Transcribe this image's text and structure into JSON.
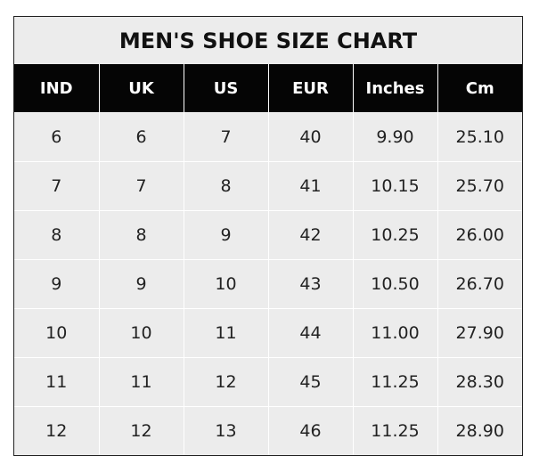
{
  "title": "MEN'S SHOE SIZE CHART",
  "columns": [
    "IND",
    "UK",
    "US",
    "EUR",
    "Inches",
    "Cm"
  ],
  "rows": [
    [
      "6",
      "6",
      "7",
      "40",
      "9.90",
      "25.10"
    ],
    [
      "7",
      "7",
      "8",
      "41",
      "10.15",
      "25.70"
    ],
    [
      "8",
      "8",
      "9",
      "42",
      "10.25",
      "26.00"
    ],
    [
      "9",
      "9",
      "10",
      "43",
      "10.50",
      "26.70"
    ],
    [
      "10",
      "10",
      "11",
      "44",
      "11.00",
      "27.90"
    ],
    [
      "11",
      "11",
      "12",
      "45",
      "11.25",
      "28.30"
    ],
    [
      "12",
      "12",
      "13",
      "46",
      "11.25",
      "28.90"
    ]
  ],
  "colors": {
    "header_bg": "#050505",
    "cell_bg": "#ececec"
  }
}
